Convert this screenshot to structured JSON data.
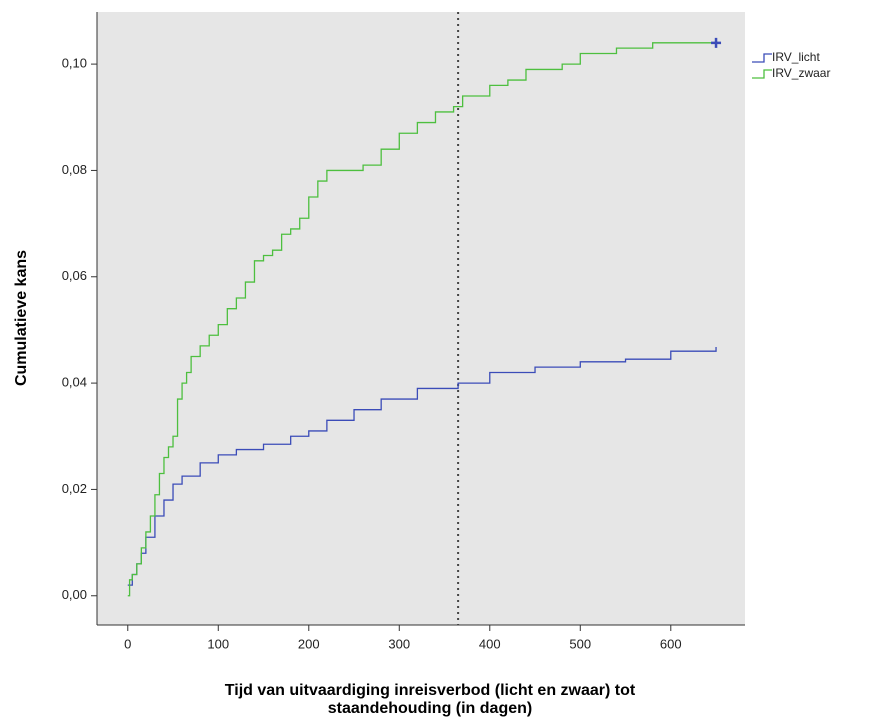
{
  "chart_data": {
    "type": "step",
    "ylabel": "Cumulatieve kans",
    "xlabel": [
      "Tijd van uitvaardiging inreisverbod (licht en zwaar) tot",
      "staandehouding (in dagen)"
    ],
    "xlim": [
      -34,
      682
    ],
    "ylim": [
      -0.0055,
      0.1098
    ],
    "xticks": [
      0,
      100,
      200,
      300,
      400,
      500,
      600
    ],
    "yticks": [
      {
        "value": 0,
        "label": "0,00"
      },
      {
        "value": 0.02,
        "label": "0,02"
      },
      {
        "value": 0.04,
        "label": "0,04"
      },
      {
        "value": 0.06,
        "label": "0,06"
      },
      {
        "value": 0.08,
        "label": "0,08"
      },
      {
        "value": 0.1,
        "label": "0,10"
      }
    ],
    "reference_line_x": 365,
    "legend": "top-right",
    "series": [
      {
        "name": "IRV_licht",
        "color": "#3b4cb8",
        "x": [
          0,
          5,
          10,
          15,
          20,
          30,
          40,
          50,
          60,
          80,
          100,
          120,
          150,
          180,
          200,
          220,
          250,
          280,
          320,
          365,
          400,
          450,
          500,
          550,
          600,
          650
        ],
        "values": [
          0.002,
          0.004,
          0.006,
          0.008,
          0.011,
          0.015,
          0.018,
          0.021,
          0.0225,
          0.025,
          0.0265,
          0.0275,
          0.0285,
          0.03,
          0.031,
          0.033,
          0.035,
          0.037,
          0.039,
          0.04,
          0.042,
          0.043,
          0.044,
          0.0445,
          0.046,
          0.0468
        ]
      },
      {
        "name": "IRV_zwaar",
        "color": "#4dbf3f",
        "x": [
          0,
          2,
          5,
          10,
          15,
          20,
          25,
          30,
          35,
          40,
          45,
          50,
          55,
          60,
          65,
          70,
          80,
          90,
          100,
          110,
          120,
          130,
          140,
          150,
          160,
          170,
          180,
          190,
          200,
          210,
          220,
          260,
          280,
          300,
          320,
          340,
          360,
          370,
          400,
          420,
          440,
          480,
          500,
          540,
          580,
          650
        ],
        "values": [
          0,
          0.003,
          0.004,
          0.006,
          0.009,
          0.012,
          0.015,
          0.019,
          0.023,
          0.026,
          0.028,
          0.03,
          0.037,
          0.04,
          0.042,
          0.045,
          0.047,
          0.049,
          0.051,
          0.054,
          0.056,
          0.059,
          0.063,
          0.064,
          0.065,
          0.068,
          0.069,
          0.071,
          0.075,
          0.078,
          0.08,
          0.081,
          0.084,
          0.087,
          0.089,
          0.091,
          0.092,
          0.094,
          0.096,
          0.097,
          0.099,
          0.1,
          0.102,
          0.103,
          0.104,
          0.104
        ]
      }
    ]
  }
}
